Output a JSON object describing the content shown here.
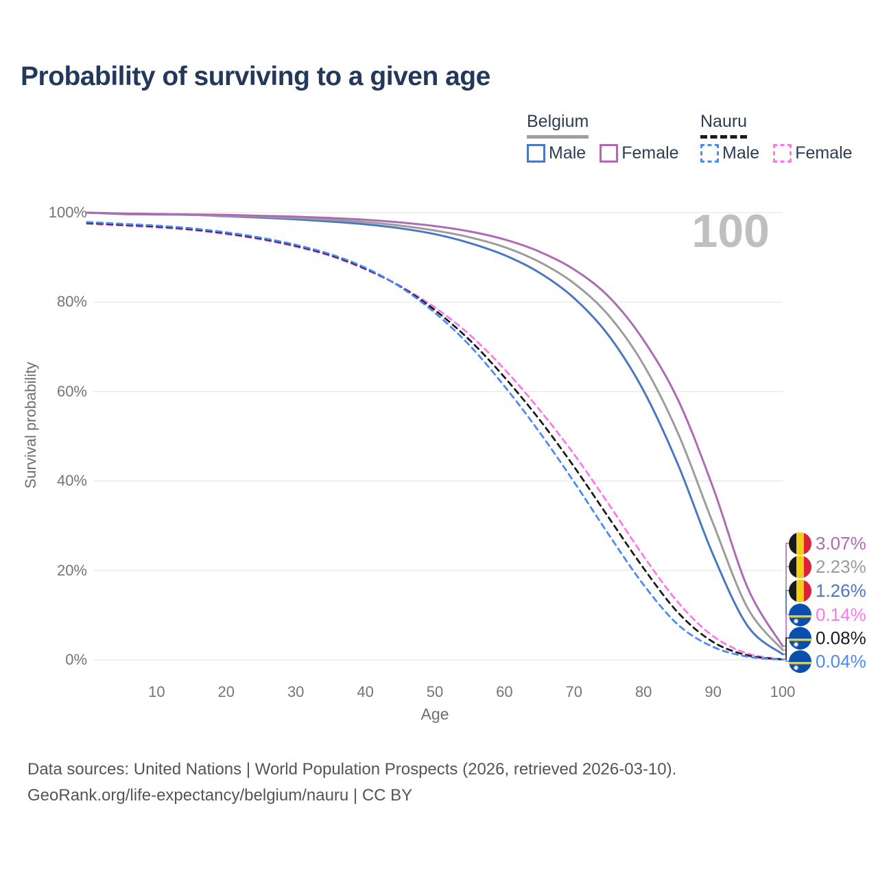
{
  "title": "Probability of surviving to a given age",
  "age_marker": "100",
  "legend": {
    "groups": [
      {
        "country": "Belgium",
        "line_style": "solid",
        "items": [
          {
            "label": "Male",
            "color": "#4a77c4",
            "style": "solid"
          },
          {
            "label": "Female",
            "color": "#ae6bb4",
            "style": "solid"
          }
        ]
      },
      {
        "country": "Nauru",
        "line_style": "dashed",
        "items": [
          {
            "label": "Male",
            "color": "#4a8af5",
            "style": "dashed"
          },
          {
            "label": "Female",
            "color": "#fb78e8",
            "style": "dashed"
          }
        ]
      }
    ]
  },
  "footer": {
    "line1": "Data sources: United Nations | World Population Prospects (2026, retrieved 2026-03-10).",
    "line2": "GeoRank.org/life-expectancy/belgium/nauru | CC BY"
  },
  "end_labels": [
    {
      "value": "3.07%",
      "color": "#ae6bb4",
      "flag": "belgium",
      "series": "belgium_female"
    },
    {
      "value": "2.23%",
      "color": "#9c9c9c",
      "flag": "belgium",
      "series": "belgium_total"
    },
    {
      "value": "1.26%",
      "color": "#4a77c4",
      "flag": "belgium",
      "series": "belgium_male"
    },
    {
      "value": "0.14%",
      "color": "#fb78e8",
      "flag": "nauru",
      "series": "nauru_female"
    },
    {
      "value": "0.08%",
      "color": "#1b1b1b",
      "flag": "nauru",
      "series": "nauru_total"
    },
    {
      "value": "0.04%",
      "color": "#4a8af5",
      "flag": "nauru",
      "series": "nauru_male"
    }
  ],
  "chart_data": {
    "type": "line",
    "title": "Probability of surviving to a given age",
    "xlabel": "Age",
    "ylabel": "Survival probability",
    "xlim": [
      0,
      100
    ],
    "ylim": [
      0,
      100
    ],
    "grid": "horizontal",
    "x_ticks": [
      10,
      20,
      30,
      40,
      50,
      60,
      70,
      80,
      90,
      100
    ],
    "y_ticks": [
      {
        "v": 0,
        "label": "0%"
      },
      {
        "v": 20,
        "label": "20%"
      },
      {
        "v": 40,
        "label": "40%"
      },
      {
        "v": 60,
        "label": "60%"
      },
      {
        "v": 80,
        "label": "80%"
      },
      {
        "v": 100,
        "label": "100%"
      }
    ],
    "current_age_marker": 100,
    "series": [
      {
        "id": "belgium_male",
        "name": "Belgium Male",
        "color": "#4a77c4",
        "dash": false,
        "final_value_pct": 1.26,
        "points": [
          [
            0,
            100
          ],
          [
            5,
            99.7
          ],
          [
            10,
            99.6
          ],
          [
            15,
            99.5
          ],
          [
            20,
            99.2
          ],
          [
            25,
            98.9
          ],
          [
            30,
            98.5
          ],
          [
            35,
            98.0
          ],
          [
            40,
            97.4
          ],
          [
            45,
            96.5
          ],
          [
            50,
            95.2
          ],
          [
            55,
            93.2
          ],
          [
            60,
            90.5
          ],
          [
            65,
            86.6
          ],
          [
            70,
            80.9
          ],
          [
            75,
            72.5
          ],
          [
            80,
            60.2
          ],
          [
            85,
            43.5
          ],
          [
            90,
            23.5
          ],
          [
            95,
            7.5
          ],
          [
            100,
            1.26
          ]
        ]
      },
      {
        "id": "belgium_total",
        "name": "Belgium Both sexes",
        "color": "#9c9c9c",
        "dash": false,
        "final_value_pct": 2.23,
        "points": [
          [
            0,
            100
          ],
          [
            5,
            99.8
          ],
          [
            10,
            99.7
          ],
          [
            15,
            99.5
          ],
          [
            20,
            99.3
          ],
          [
            25,
            99.1
          ],
          [
            30,
            98.8
          ],
          [
            35,
            98.4
          ],
          [
            40,
            97.9
          ],
          [
            45,
            97.1
          ],
          [
            50,
            96.0
          ],
          [
            55,
            94.5
          ],
          [
            60,
            92.3
          ],
          [
            65,
            89.0
          ],
          [
            70,
            84.2
          ],
          [
            75,
            77.0
          ],
          [
            80,
            66.0
          ],
          [
            85,
            50.5
          ],
          [
            90,
            30.5
          ],
          [
            95,
            11.5
          ],
          [
            100,
            2.23
          ]
        ]
      },
      {
        "id": "belgium_female",
        "name": "Belgium Female",
        "color": "#ae6bb4",
        "dash": false,
        "final_value_pct": 3.07,
        "points": [
          [
            0,
            100
          ],
          [
            5,
            99.8
          ],
          [
            10,
            99.7
          ],
          [
            15,
            99.6
          ],
          [
            20,
            99.5
          ],
          [
            25,
            99.3
          ],
          [
            30,
            99.1
          ],
          [
            35,
            98.8
          ],
          [
            40,
            98.4
          ],
          [
            45,
            97.8
          ],
          [
            50,
            97.0
          ],
          [
            55,
            95.8
          ],
          [
            60,
            94.0
          ],
          [
            65,
            91.3
          ],
          [
            70,
            87.3
          ],
          [
            75,
            81.2
          ],
          [
            80,
            71.5
          ],
          [
            85,
            58.0
          ],
          [
            90,
            38.5
          ],
          [
            95,
            16.0
          ],
          [
            100,
            3.07
          ]
        ]
      },
      {
        "id": "nauru_female",
        "name": "Nauru Female",
        "color": "#fb78e8",
        "dash": true,
        "final_value_pct": 0.14,
        "points": [
          [
            0,
            97.5
          ],
          [
            5,
            97.1
          ],
          [
            10,
            96.7
          ],
          [
            15,
            96.1
          ],
          [
            20,
            95.2
          ],
          [
            25,
            94.0
          ],
          [
            30,
            92.4
          ],
          [
            35,
            90.3
          ],
          [
            40,
            87.3
          ],
          [
            45,
            83.6
          ],
          [
            50,
            78.8
          ],
          [
            55,
            72.7
          ],
          [
            60,
            65.0
          ],
          [
            65,
            56.0
          ],
          [
            70,
            46.0
          ],
          [
            75,
            34.8
          ],
          [
            80,
            23.2
          ],
          [
            85,
            12.8
          ],
          [
            90,
            5.3
          ],
          [
            95,
            1.4
          ],
          [
            100,
            0.14
          ]
        ]
      },
      {
        "id": "nauru_total",
        "name": "Nauru Both sexes",
        "color": "#1b1b1b",
        "dash": true,
        "final_value_pct": 0.08,
        "points": [
          [
            0,
            97.7
          ],
          [
            5,
            97.3
          ],
          [
            10,
            96.9
          ],
          [
            15,
            96.3
          ],
          [
            20,
            95.4
          ],
          [
            25,
            94.2
          ],
          [
            30,
            92.6
          ],
          [
            35,
            90.5
          ],
          [
            40,
            87.5
          ],
          [
            45,
            83.5
          ],
          [
            50,
            78.2
          ],
          [
            55,
            71.5
          ],
          [
            60,
            63.2
          ],
          [
            65,
            53.8
          ],
          [
            70,
            43.2
          ],
          [
            75,
            31.8
          ],
          [
            80,
            20.5
          ],
          [
            85,
            10.5
          ],
          [
            90,
            4.0
          ],
          [
            95,
            1.0
          ],
          [
            100,
            0.08
          ]
        ]
      },
      {
        "id": "nauru_male",
        "name": "Nauru Male",
        "color": "#4a8af5",
        "dash": true,
        "final_value_pct": 0.04,
        "points": [
          [
            0,
            97.9
          ],
          [
            5,
            97.5
          ],
          [
            10,
            97.1
          ],
          [
            15,
            96.5
          ],
          [
            20,
            95.6
          ],
          [
            25,
            94.4
          ],
          [
            30,
            92.8
          ],
          [
            35,
            90.7
          ],
          [
            40,
            87.7
          ],
          [
            45,
            83.4
          ],
          [
            50,
            77.6
          ],
          [
            55,
            70.3
          ],
          [
            60,
            61.2
          ],
          [
            65,
            51.0
          ],
          [
            70,
            39.8
          ],
          [
            75,
            28.0
          ],
          [
            80,
            16.8
          ],
          [
            85,
            7.8
          ],
          [
            90,
            2.9
          ],
          [
            95,
            0.7
          ],
          [
            100,
            0.04
          ]
        ]
      }
    ]
  }
}
